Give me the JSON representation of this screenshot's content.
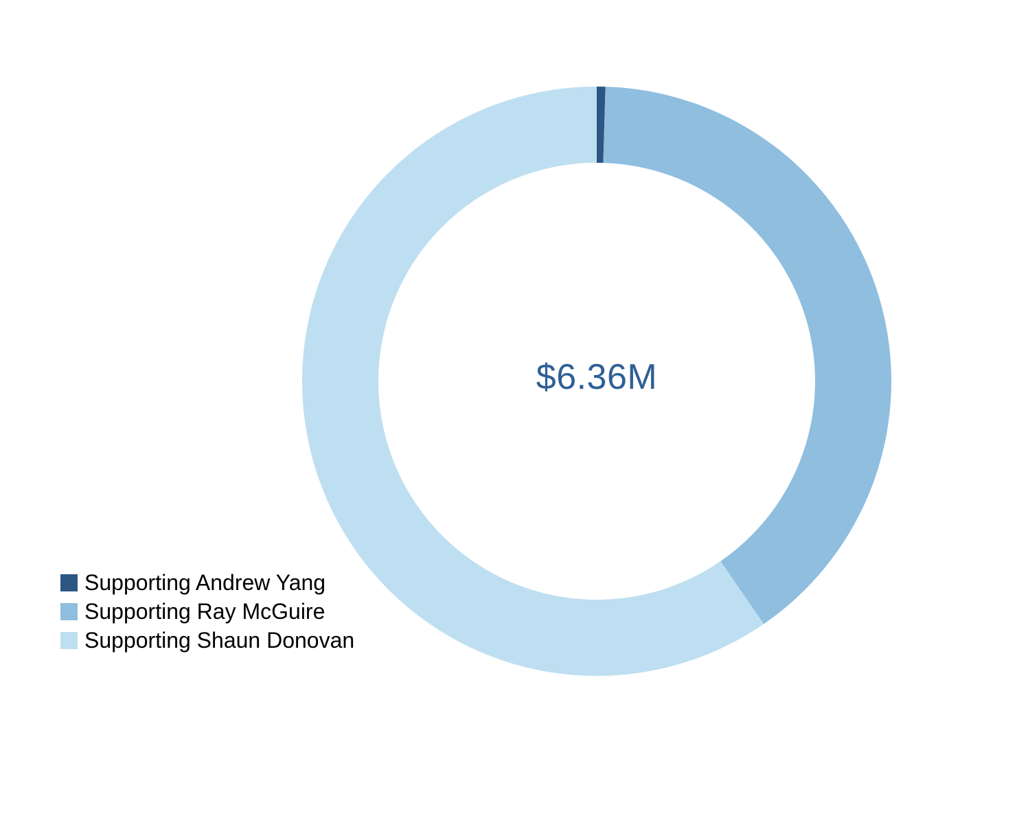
{
  "chart_data": {
    "type": "pie",
    "subtype": "donut",
    "title": "",
    "center_label": "$6.36M",
    "total_value_musd": 6.36,
    "unit": "USD millions",
    "start_angle_deg": 0,
    "direction": "clockwise",
    "legend_position": "bottom-left",
    "grid": false,
    "segments": [
      {
        "label": "Supporting Andrew Yang",
        "value_musd": 0.03,
        "fraction": 0.0047,
        "color": "#2C5783"
      },
      {
        "label": "Supporting Ray McGuire",
        "value_musd": 2.54,
        "fraction": 0.3994,
        "color": "#8FBEDF"
      },
      {
        "label": "Supporting Shaun Donovan",
        "value_musd": 3.79,
        "fraction": 0.5959,
        "color": "#BEDFF1"
      }
    ]
  },
  "center_label": {
    "text": "$6.36M",
    "color": "#2F5F96"
  },
  "legend": {
    "text_color": "#000000"
  }
}
